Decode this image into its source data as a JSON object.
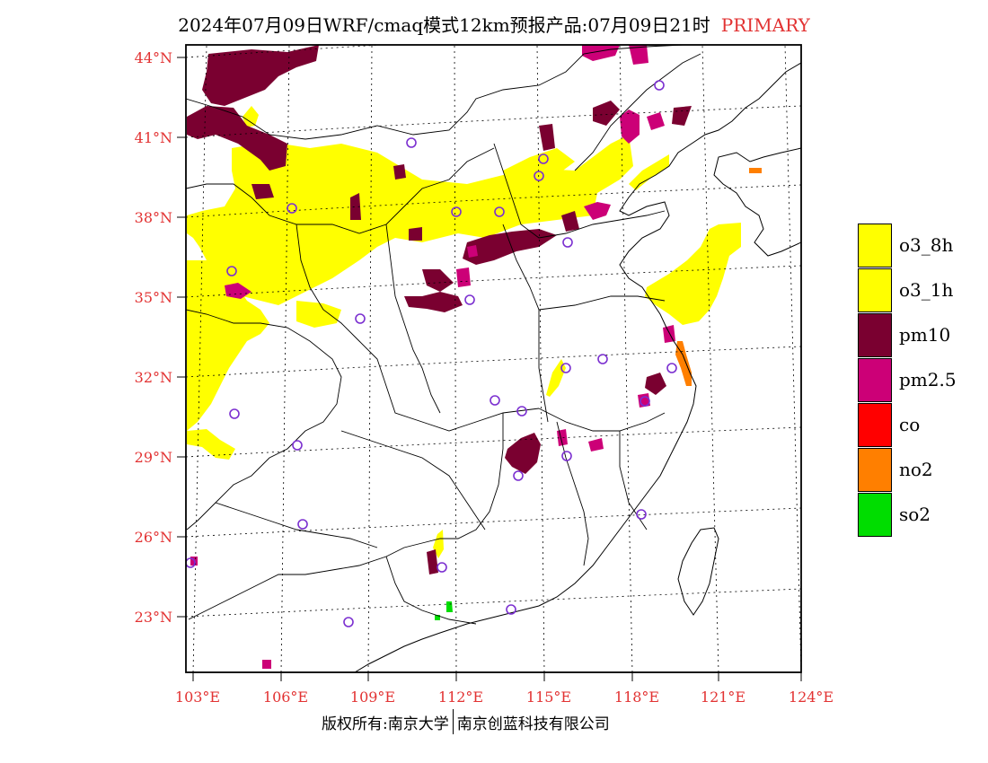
{
  "title": {
    "main": "2024年07月09日WRF/cmaq模式12km预报产品:07月09日21时",
    "tag": "PRIMARY"
  },
  "axes": {
    "lat_labels": [
      "44°N",
      "41°N",
      "38°N",
      "35°N",
      "32°N",
      "29°N",
      "26°N",
      "23°N"
    ],
    "lon_labels": [
      "103°E",
      "106°E",
      "109°E",
      "112°E",
      "115°E",
      "118°E",
      "121°E",
      "124°E"
    ]
  },
  "legend": [
    {
      "label": "o3_8h",
      "color": "#ffff00"
    },
    {
      "label": "o3_1h",
      "color": "#ffff00"
    },
    {
      "label": "pm10",
      "color": "#7a0030"
    },
    {
      "label": "pm2.5",
      "color": "#cc0077"
    },
    {
      "label": "co",
      "color": "#ff0000"
    },
    {
      "label": "no2",
      "color": "#ff7f00"
    },
    {
      "label": "so2",
      "color": "#00dd00"
    }
  ],
  "footer": {
    "left": "版权所有:南京大学",
    "right": "南京创蓝科技有限公司"
  },
  "colors": {
    "o3": "#ffff00",
    "pm10": "#7a0030",
    "pm25": "#cc0077",
    "no2": "#ff7f00",
    "so2": "#00dd00",
    "station": "#7b2fd0",
    "label": "#e23232"
  }
}
